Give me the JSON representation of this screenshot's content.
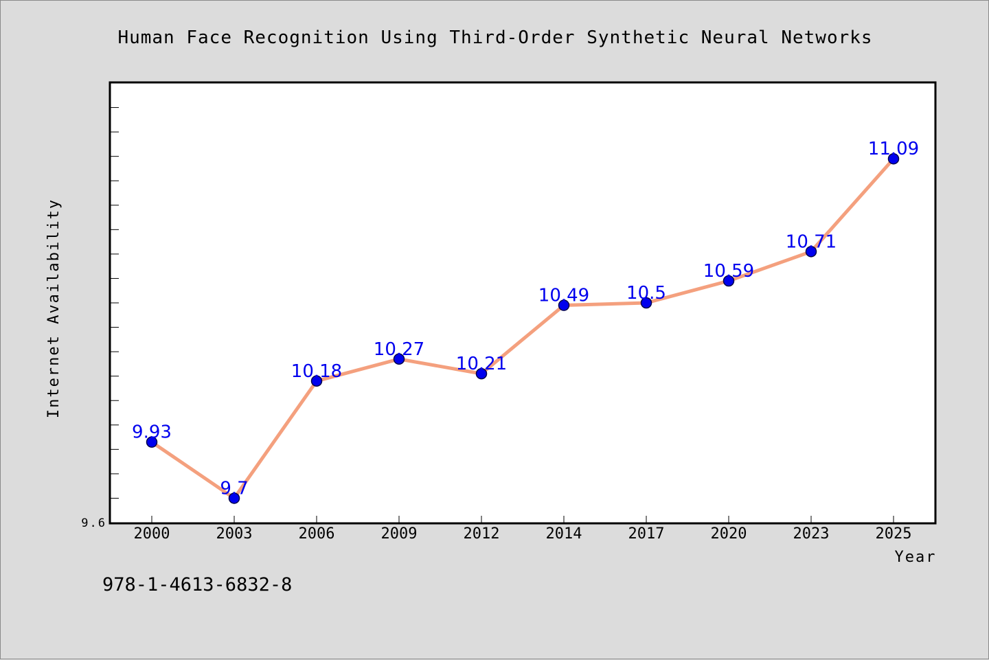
{
  "chart_data": {
    "type": "line",
    "title": "Human Face Recognition Using Third-Order Synthetic Neural Networks",
    "xlabel": "Year",
    "ylabel": "Internet Availability",
    "categories": [
      "2000",
      "2003",
      "2006",
      "2009",
      "2012",
      "2014",
      "2017",
      "2020",
      "2023",
      "2025"
    ],
    "values": [
      9.93,
      9.7,
      10.18,
      10.27,
      10.21,
      10.49,
      10.5,
      10.59,
      10.71,
      11.09
    ],
    "data_labels": [
      "9.93",
      "9.7",
      "10.18",
      "10.27",
      "10.21",
      "10.49",
      "10.5",
      "10.59",
      "10.71",
      "11.09"
    ],
    "ylim": [
      9.6,
      11.4
    ],
    "y_tick_labels": [
      "9.6"
    ],
    "grid": false,
    "line_color": "#f4a07e",
    "marker_color": "#0000ee",
    "label_color": "#0000ee"
  },
  "footer": {
    "isbn": "978-1-4613-6832-8"
  }
}
